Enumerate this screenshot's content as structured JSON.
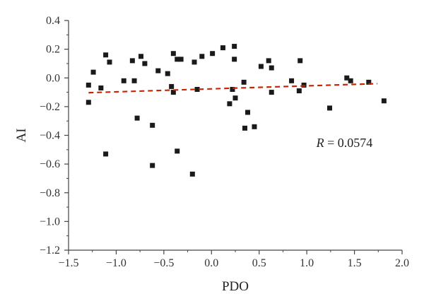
{
  "chart_data": {
    "type": "scatter",
    "xlabel": "PDO",
    "ylabel": "AI",
    "xlim": [
      -1.5,
      2.0
    ],
    "ylim": [
      -1.2,
      0.4
    ],
    "x_ticks": [
      -1.5,
      -1.0,
      -0.5,
      0.0,
      0.5,
      1.0,
      1.5,
      2.0
    ],
    "y_ticks": [
      -1.2,
      -1.0,
      -0.8,
      -0.6,
      -0.4,
      -0.2,
      0.0,
      0.2,
      0.4
    ],
    "x_tick_labels": [
      "−1.5",
      "−1.0",
      "−0.5",
      "0.0",
      "0.5",
      "1.0",
      "1.5",
      "2.0"
    ],
    "y_tick_labels": [
      "−1.2",
      "−1.0",
      "−0.8",
      "−0.6",
      "−0.4",
      "−0.2",
      "0.0",
      "0.2",
      "0.4"
    ],
    "grid": false,
    "marker_color": "#1a1a1a",
    "trend_color": "#cc2200",
    "points": [
      {
        "x": -1.29,
        "y": -0.05
      },
      {
        "x": -1.29,
        "y": -0.17
      },
      {
        "x": -1.24,
        "y": 0.04
      },
      {
        "x": -1.16,
        "y": -0.07
      },
      {
        "x": -1.11,
        "y": 0.16
      },
      {
        "x": -1.11,
        "y": -0.53
      },
      {
        "x": -1.07,
        "y": 0.11
      },
      {
        "x": -0.92,
        "y": -0.02
      },
      {
        "x": -0.83,
        "y": 0.12
      },
      {
        "x": -0.81,
        "y": -0.02
      },
      {
        "x": -0.78,
        "y": -0.28
      },
      {
        "x": -0.74,
        "y": 0.15
      },
      {
        "x": -0.7,
        "y": 0.1
      },
      {
        "x": -0.62,
        "y": -0.33
      },
      {
        "x": -0.62,
        "y": -0.61
      },
      {
        "x": -0.56,
        "y": 0.05
      },
      {
        "x": -0.46,
        "y": 0.03
      },
      {
        "x": -0.42,
        "y": -0.06
      },
      {
        "x": -0.4,
        "y": 0.17
      },
      {
        "x": -0.4,
        "y": -0.1
      },
      {
        "x": -0.36,
        "y": 0.13
      },
      {
        "x": -0.36,
        "y": -0.51
      },
      {
        "x": -0.32,
        "y": 0.13
      },
      {
        "x": -0.2,
        "y": -0.67
      },
      {
        "x": -0.18,
        "y": 0.11
      },
      {
        "x": -0.15,
        "y": -0.08
      },
      {
        "x": -0.1,
        "y": 0.15
      },
      {
        "x": 0.01,
        "y": 0.17
      },
      {
        "x": 0.12,
        "y": 0.21
      },
      {
        "x": 0.19,
        "y": -0.18
      },
      {
        "x": 0.22,
        "y": -0.08
      },
      {
        "x": 0.24,
        "y": 0.22
      },
      {
        "x": 0.24,
        "y": 0.13
      },
      {
        "x": 0.25,
        "y": -0.14
      },
      {
        "x": 0.34,
        "y": -0.03
      },
      {
        "x": 0.35,
        "y": -0.35
      },
      {
        "x": 0.38,
        "y": -0.24
      },
      {
        "x": 0.45,
        "y": -0.34
      },
      {
        "x": 0.52,
        "y": 0.08
      },
      {
        "x": 0.6,
        "y": 0.12
      },
      {
        "x": 0.63,
        "y": 0.07
      },
      {
        "x": 0.63,
        "y": -0.1
      },
      {
        "x": 0.84,
        "y": -0.02
      },
      {
        "x": 0.92,
        "y": -0.09
      },
      {
        "x": 0.93,
        "y": 0.12
      },
      {
        "x": 0.97,
        "y": -0.05
      },
      {
        "x": 1.24,
        "y": -0.21
      },
      {
        "x": 1.42,
        "y": 0.0
      },
      {
        "x": 1.46,
        "y": -0.02
      },
      {
        "x": 1.65,
        "y": -0.03
      },
      {
        "x": 1.81,
        "y": -0.16
      }
    ],
    "trend_line": {
      "x": [
        -1.29,
        1.74
      ],
      "y": [
        -0.103,
        -0.04
      ],
      "style": "dashed"
    },
    "annotation": {
      "label": "R",
      "text": " = 0.0574",
      "x": 1.1,
      "y": -0.48
    }
  }
}
